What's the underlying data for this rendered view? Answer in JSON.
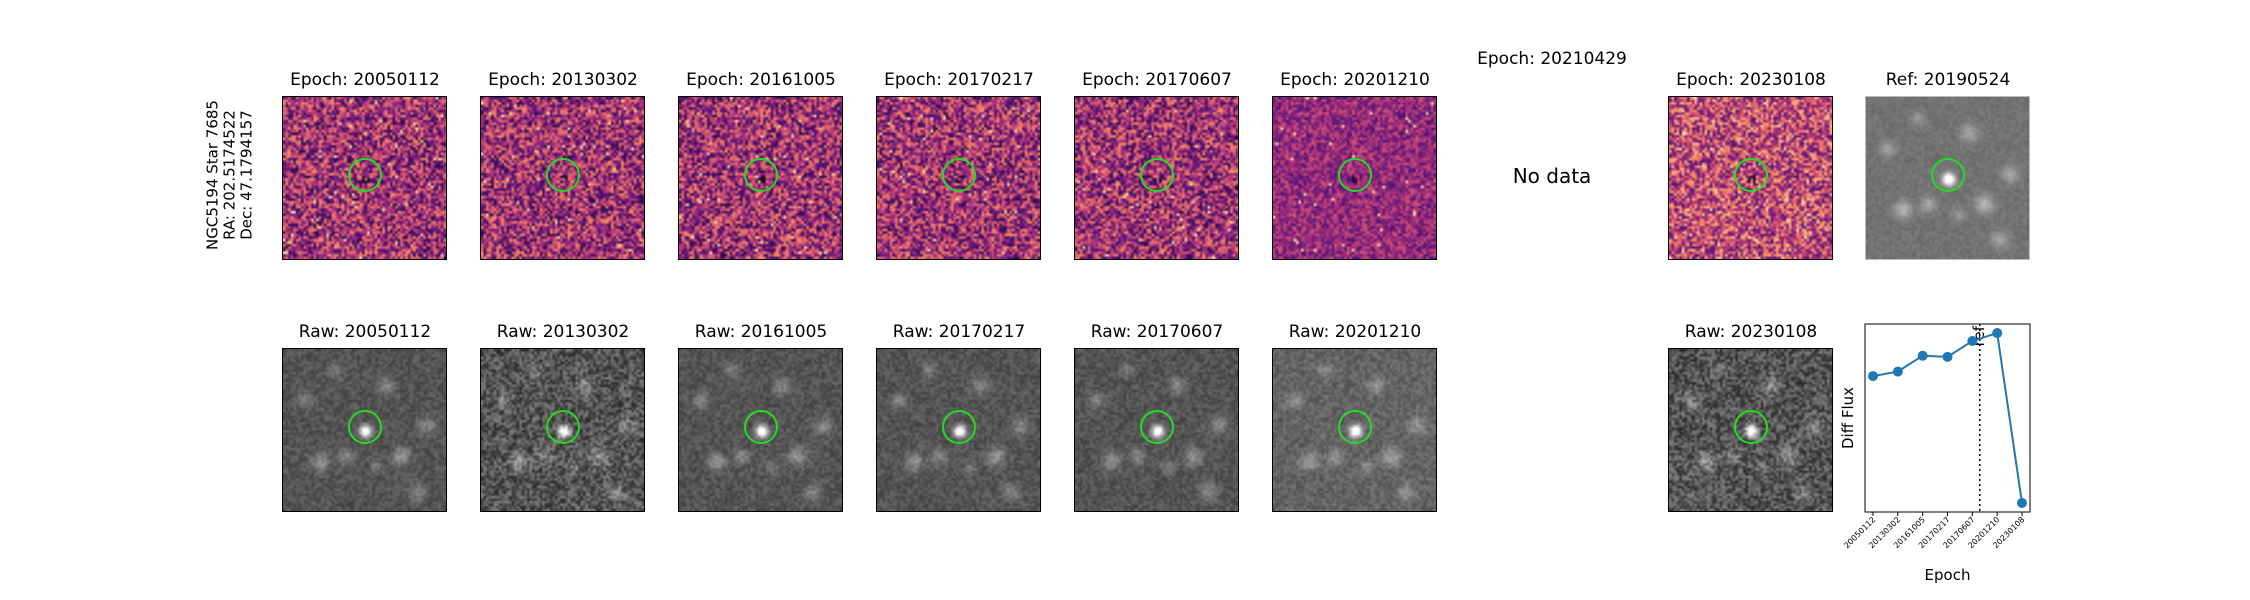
{
  "row_label": [
    "NGC5194 Star 7685",
    "RA: 202.5174522",
    "Dec: 47.1794157"
  ],
  "diff_titles": [
    "Epoch: 20050112",
    "Epoch: 20130302",
    "Epoch: 20161005",
    "Epoch: 20170217",
    "Epoch: 20170607",
    "Epoch: 20201210",
    "Epoch: 20210429",
    "Epoch: 20230108",
    "Ref: 20190524"
  ],
  "raw_titles": [
    "Raw: 20050112",
    "Raw: 20130302",
    "Raw: 20161005",
    "Raw: 20170217",
    "Raw: 20170607",
    "Raw: 20201210",
    "Raw: 20230108"
  ],
  "no_data_text": "No data",
  "colors": {
    "marker": "#22dd22",
    "line": "#1f77b4"
  },
  "chart_data": {
    "type": "line",
    "title": "",
    "xlabel": "Epoch",
    "ylabel": "Diff Flux",
    "categories": [
      "20050112",
      "20130302",
      "20161005",
      "20170217",
      "20170607",
      "20201210",
      "20230108"
    ],
    "values": [
      0.62,
      0.66,
      0.8,
      0.79,
      0.93,
      1.0,
      -0.5
    ],
    "ylim": [
      -0.58,
      1.08
    ],
    "reference_line": {
      "position_between": [
        "20170607",
        "20201210"
      ],
      "label": "ref",
      "style": "dotted"
    },
    "grid": false
  }
}
